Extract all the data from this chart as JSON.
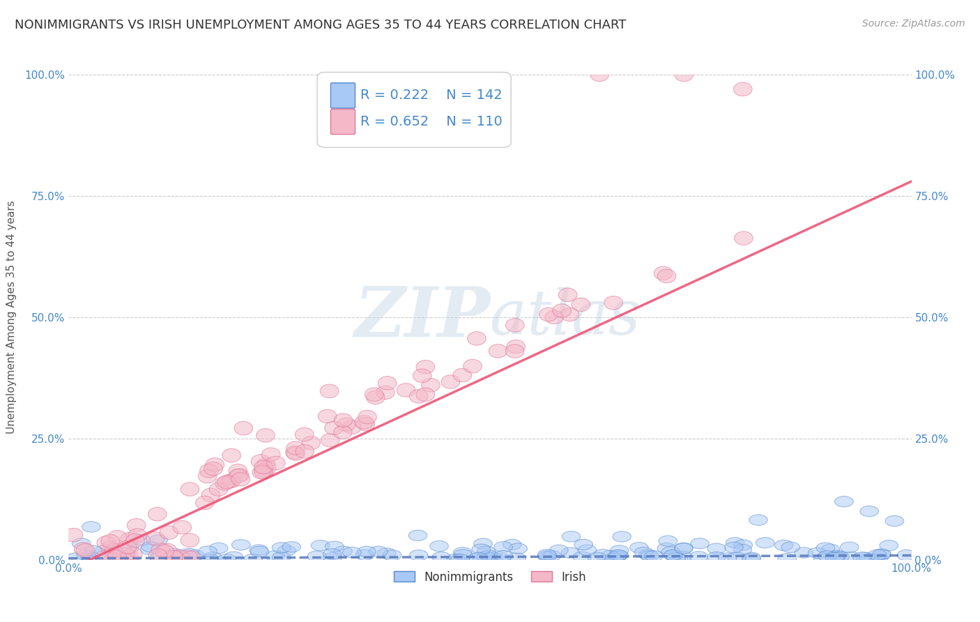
{
  "title": "NONIMMIGRANTS VS IRISH UNEMPLOYMENT AMONG AGES 35 TO 44 YEARS CORRELATION CHART",
  "source": "Source: ZipAtlas.com",
  "ylabel": "Unemployment Among Ages 35 to 44 years",
  "ytick_vals": [
    0,
    0.25,
    0.5,
    0.75,
    1.0
  ],
  "legend_entries": [
    {
      "label": "Nonimmigrants",
      "face_color": "#a8c8f0",
      "edge_color": "#6699cc",
      "R": "0.222",
      "N": "142"
    },
    {
      "label": "Irish",
      "face_color": "#f4b8c8",
      "edge_color": "#dd8899",
      "R": "0.652",
      "N": "110"
    }
  ],
  "nonimm_face": "#a8c8f5",
  "nonimm_edge": "#5588cc",
  "nonimm_trend": "#5577bb",
  "irish_face": "#f4b8c8",
  "irish_edge": "#dd7799",
  "irish_trend": "#ee5577",
  "background_color": "#ffffff",
  "watermark_color": "#c8d8e8",
  "tick_color": "#4488cc",
  "title_color": "#333333",
  "source_color": "#999999",
  "ylabel_color": "#555555",
  "grid_color": "#cccccc",
  "xlim": [
    0,
    1.0
  ],
  "ylim": [
    0,
    1.0
  ],
  "title_fontsize": 13,
  "axis_label_fontsize": 11,
  "tick_fontsize": 11,
  "legend_fontsize": 14
}
